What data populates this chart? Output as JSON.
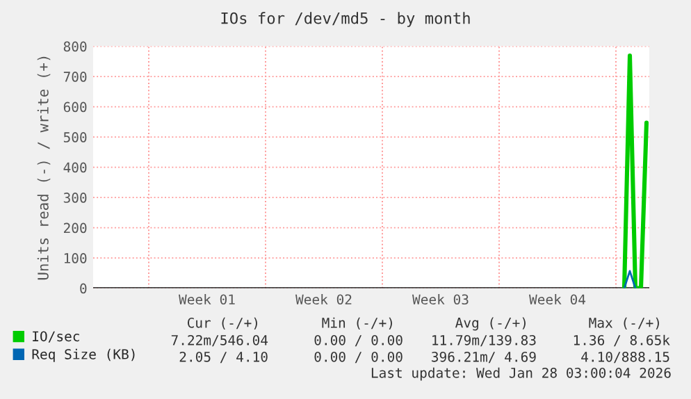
{
  "chart_data": {
    "type": "line",
    "title": "IOs for /dev/md5 - by month",
    "ylabel": "Units read (-) / write (+)",
    "categories": [
      null,
      null,
      null,
      null,
      null,
      null,
      null,
      null,
      null,
      null,
      null,
      null,
      null,
      null,
      null,
      null,
      null,
      null,
      null,
      null,
      "Week 01",
      null,
      null,
      null,
      null,
      null,
      null,
      null,
      null,
      null,
      null,
      null,
      null,
      null,
      null,
      null,
      null,
      null,
      null,
      null,
      null,
      "Week 02",
      null,
      null,
      null,
      null,
      null,
      null,
      null,
      null,
      null,
      null,
      null,
      null,
      null,
      null,
      null,
      null,
      null,
      null,
      null,
      null,
      "Week 03",
      null,
      null,
      null,
      null,
      null,
      null,
      null,
      null,
      null,
      null,
      null,
      null,
      null,
      null,
      null,
      null,
      null,
      null,
      null,
      null,
      "Week 04",
      null,
      null,
      null,
      null,
      null,
      null,
      null,
      null,
      null,
      null,
      null,
      null,
      null,
      null,
      null,
      null
    ],
    "ylim": [
      0,
      800
    ],
    "yticks": [
      0,
      100,
      200,
      300,
      400,
      500,
      600,
      700,
      800
    ],
    "grid": true,
    "legend": "bottom left",
    "series": [
      {
        "name": "IO/sec",
        "color": "#00cc00",
        "values": [
          null,
          null,
          null,
          null,
          null,
          null,
          null,
          null,
          null,
          null,
          null,
          null,
          null,
          null,
          null,
          null,
          null,
          null,
          null,
          null,
          null,
          null,
          null,
          null,
          null,
          null,
          null,
          null,
          null,
          null,
          null,
          null,
          null,
          null,
          null,
          null,
          null,
          null,
          null,
          null,
          null,
          null,
          null,
          null,
          null,
          null,
          null,
          null,
          null,
          null,
          null,
          null,
          null,
          null,
          null,
          null,
          null,
          null,
          null,
          null,
          null,
          null,
          null,
          null,
          null,
          null,
          null,
          null,
          null,
          null,
          null,
          null,
          null,
          null,
          null,
          null,
          null,
          null,
          null,
          null,
          null,
          null,
          null,
          null,
          null,
          null,
          null,
          null,
          null,
          null,
          null,
          null,
          null,
          null,
          null,
          0,
          769,
          0,
          0,
          547
        ]
      },
      {
        "name": "Req Size (KB)",
        "color": "#0066b3",
        "values": [
          null,
          null,
          null,
          null,
          null,
          null,
          null,
          null,
          null,
          null,
          null,
          null,
          null,
          null,
          null,
          null,
          null,
          null,
          null,
          null,
          null,
          null,
          null,
          null,
          null,
          null,
          null,
          null,
          null,
          null,
          null,
          null,
          null,
          null,
          null,
          null,
          null,
          null,
          null,
          null,
          null,
          null,
          null,
          null,
          null,
          null,
          null,
          null,
          null,
          null,
          null,
          null,
          null,
          null,
          null,
          null,
          null,
          null,
          null,
          null,
          null,
          null,
          null,
          null,
          null,
          null,
          null,
          null,
          null,
          null,
          null,
          null,
          null,
          null,
          null,
          null,
          null,
          null,
          null,
          null,
          null,
          null,
          null,
          null,
          null,
          null,
          null,
          null,
          null,
          null,
          null,
          null,
          null,
          null,
          null,
          0,
          57,
          0,
          null,
          null
        ]
      }
    ],
    "annotations": [
      "Cur (-/+)",
      "Min (-/+)",
      "Avg (-/+)",
      "Max (-/+)",
      "7.22m/546.04",
      "0.00 / 0.00",
      "11.79m/139.83",
      "1.36 / 8.65k",
      "2.05 / 4.10",
      "0.00 / 0.00",
      "396.21m/ 4.69",
      "4.10/888.15",
      "Last update: Wed Jan 28 03:00:04 2026"
    ]
  }
}
